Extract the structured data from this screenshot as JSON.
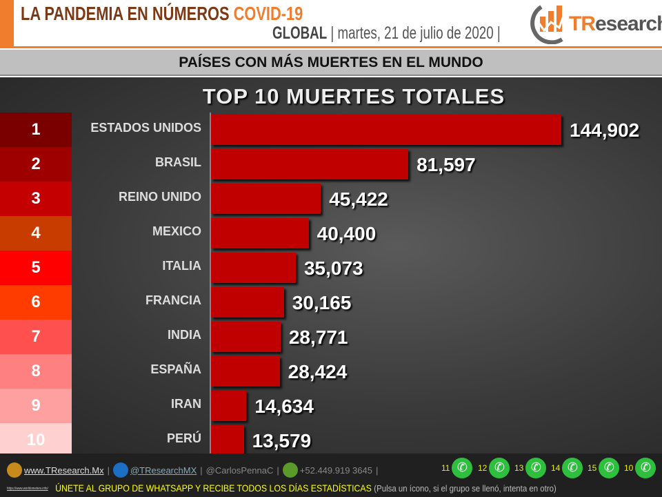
{
  "header": {
    "title": "LA PANDEMIA EN NÚMEROS",
    "title_accent": "COVID-19",
    "scope": "GLOBAL",
    "date": "martes, 21 de julio de 2020",
    "logo_text_accent": "TR",
    "logo_text": "esearch"
  },
  "subtitle": "PAÍSES CON MÁS MUERTES EN EL MUNDO",
  "colors": {
    "bar": "#c00000",
    "accent": "#ef7d2d",
    "ranks": [
      "#7a0000",
      "#9e0000",
      "#c40000",
      "#c83c00",
      "#ff0000",
      "#ff3c00",
      "#ff5050",
      "#ff8080",
      "#ffa0a0",
      "#ffd0d0"
    ]
  },
  "chart_data": {
    "type": "bar",
    "orientation": "horizontal",
    "title": "TOP 10 MUERTES TOTALES",
    "ranks": [
      "1",
      "2",
      "3",
      "4",
      "5",
      "6",
      "7",
      "8",
      "9",
      "10"
    ],
    "categories": [
      "ESTADOS UNIDOS",
      "BRASIL",
      "REINO UNIDO",
      "MEXICO",
      "ITALIA",
      "FRANCIA",
      "INDIA",
      "ESPAÑA",
      "IRAN",
      "PERÚ"
    ],
    "values": [
      144902,
      81597,
      45422,
      40400,
      35073,
      30165,
      28771,
      28424,
      14634,
      13579
    ],
    "value_labels": [
      "144,902",
      "81,597",
      "45,422",
      "40,400",
      "35,073",
      "30,165",
      "28,771",
      "28,424",
      "14,634",
      "13,579"
    ],
    "xlim": [
      0,
      144902
    ]
  },
  "footer": {
    "website": "www.TResearch.Mx",
    "twitter": "@TResearchMX",
    "twitter2": "@CarlosPennaC",
    "phone": "+52.449.919 3645",
    "whatsapp_groups": [
      "11",
      "12",
      "13",
      "14",
      "15",
      "10"
    ],
    "source": "https://www.worldometers.info/",
    "cta": "ÚNETE AL GRUPO DE WHATSAPP Y RECIBE TODOS LOS DÍAS ESTADÍSTICAS",
    "cta_note": "(Pulsa un ícono, si el grupo se llenó, intenta en otro)"
  }
}
